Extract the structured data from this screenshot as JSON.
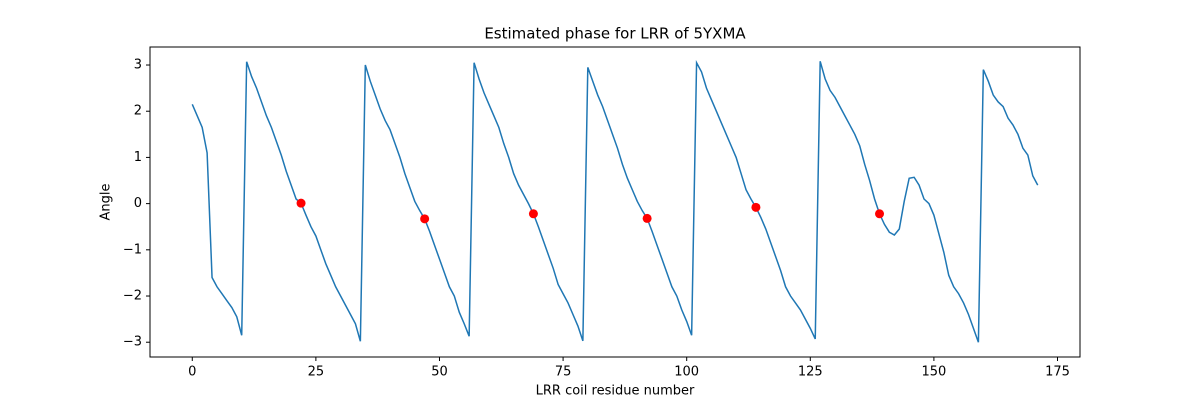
{
  "chart_data": {
    "type": "line",
    "title": "Estimated phase for LRR of 5YXMA",
    "x_label": "LRR coil residue number",
    "y_label": "Angle",
    "xlim": [
      -8.55,
      179.55
    ],
    "ylim": [
      -3.32,
      3.39
    ],
    "xticks": [
      0,
      25,
      50,
      75,
      100,
      125,
      150,
      175
    ],
    "yticks": [
      {
        "value": -3,
        "label": "−3"
      },
      {
        "value": -2,
        "label": "−2"
      },
      {
        "value": -1,
        "label": "−1"
      },
      0,
      1,
      2,
      3
    ],
    "line": {
      "color": "#1f77b4",
      "x": [
        0,
        1,
        2,
        3,
        4,
        5,
        6,
        7,
        8,
        9,
        10,
        11,
        12,
        13,
        14,
        15,
        16,
        17,
        18,
        19,
        20,
        21,
        22,
        23,
        24,
        25,
        26,
        27,
        28,
        29,
        30,
        31,
        32,
        33,
        34,
        35,
        36,
        37,
        38,
        39,
        40,
        41,
        42,
        43,
        44,
        45,
        46,
        47,
        48,
        49,
        50,
        51,
        52,
        53,
        54,
        55,
        56,
        57,
        58,
        59,
        60,
        61,
        62,
        63,
        64,
        65,
        66,
        67,
        68,
        69,
        70,
        71,
        72,
        73,
        74,
        75,
        76,
        77,
        78,
        79,
        80,
        81,
        82,
        83,
        84,
        85,
        86,
        87,
        88,
        89,
        90,
        91,
        92,
        93,
        94,
        95,
        96,
        97,
        98,
        99,
        100,
        101,
        102,
        103,
        104,
        105,
        106,
        107,
        108,
        109,
        110,
        111,
        112,
        113,
        114,
        115,
        116,
        117,
        118,
        119,
        120,
        121,
        122,
        123,
        124,
        125,
        126,
        127,
        128,
        129,
        130,
        131,
        132,
        133,
        134,
        135,
        136,
        137,
        138,
        139,
        140,
        141,
        142,
        143,
        144,
        145,
        146,
        147,
        148,
        149,
        150,
        151,
        152,
        153,
        154,
        155,
        156,
        157,
        158,
        159,
        160,
        161,
        162,
        163,
        164,
        165,
        166,
        167,
        168,
        169,
        170,
        171
      ],
      "values": [
        2.15,
        1.9,
        1.65,
        1.1,
        -1.6,
        -1.8,
        -1.95,
        -2.1,
        -2.25,
        -2.45,
        -2.85,
        3.07,
        2.75,
        2.5,
        2.2,
        1.9,
        1.65,
        1.35,
        1.05,
        0.7,
        0.4,
        0.1,
        0.01,
        -0.25,
        -0.5,
        -0.7,
        -1.0,
        -1.3,
        -1.55,
        -1.8,
        -2.0,
        -2.2,
        -2.4,
        -2.6,
        -2.98,
        3.0,
        2.65,
        2.35,
        2.05,
        1.8,
        1.6,
        1.3,
        1.0,
        0.65,
        0.35,
        0.05,
        -0.15,
        -0.33,
        -0.6,
        -0.9,
        -1.2,
        -1.5,
        -1.8,
        -2.0,
        -2.35,
        -2.6,
        -2.87,
        3.05,
        2.7,
        2.4,
        2.15,
        1.9,
        1.65,
        1.3,
        1.0,
        0.65,
        0.4,
        0.2,
        0.0,
        -0.22,
        -0.5,
        -0.8,
        -1.1,
        -1.4,
        -1.75,
        -1.95,
        -2.15,
        -2.4,
        -2.65,
        -2.97,
        2.95,
        2.65,
        2.35,
        2.1,
        1.8,
        1.5,
        1.2,
        0.85,
        0.55,
        0.3,
        0.05,
        -0.15,
        -0.32,
        -0.6,
        -0.9,
        -1.2,
        -1.5,
        -1.8,
        -2.0,
        -2.3,
        -2.55,
        -2.85,
        3.05,
        2.85,
        2.5,
        2.25,
        2.0,
        1.75,
        1.5,
        1.25,
        1.0,
        0.65,
        0.3,
        0.1,
        -0.08,
        -0.3,
        -0.55,
        -0.85,
        -1.15,
        -1.45,
        -1.8,
        -2.0,
        -2.15,
        -2.3,
        -2.5,
        -2.7,
        -2.93,
        3.08,
        2.7,
        2.45,
        2.3,
        2.1,
        1.9,
        1.7,
        1.5,
        1.25,
        0.85,
        0.5,
        0.1,
        -0.22,
        -0.45,
        -0.62,
        -0.68,
        -0.55,
        0.05,
        0.55,
        0.57,
        0.4,
        0.1,
        0.0,
        -0.25,
        -0.65,
        -1.05,
        -1.55,
        -1.8,
        -1.95,
        -2.15,
        -2.4,
        -2.7,
        -3.0,
        2.9,
        2.65,
        2.35,
        2.2,
        2.1,
        1.85,
        1.7,
        1.5,
        1.2,
        1.05,
        0.6,
        0.4
      ]
    },
    "points": {
      "color": "#ff0000",
      "x": [
        22,
        47,
        69,
        92,
        114,
        139
      ],
      "values": [
        0.01,
        -0.33,
        -0.22,
        -0.32,
        -0.08,
        -0.22
      ]
    }
  }
}
